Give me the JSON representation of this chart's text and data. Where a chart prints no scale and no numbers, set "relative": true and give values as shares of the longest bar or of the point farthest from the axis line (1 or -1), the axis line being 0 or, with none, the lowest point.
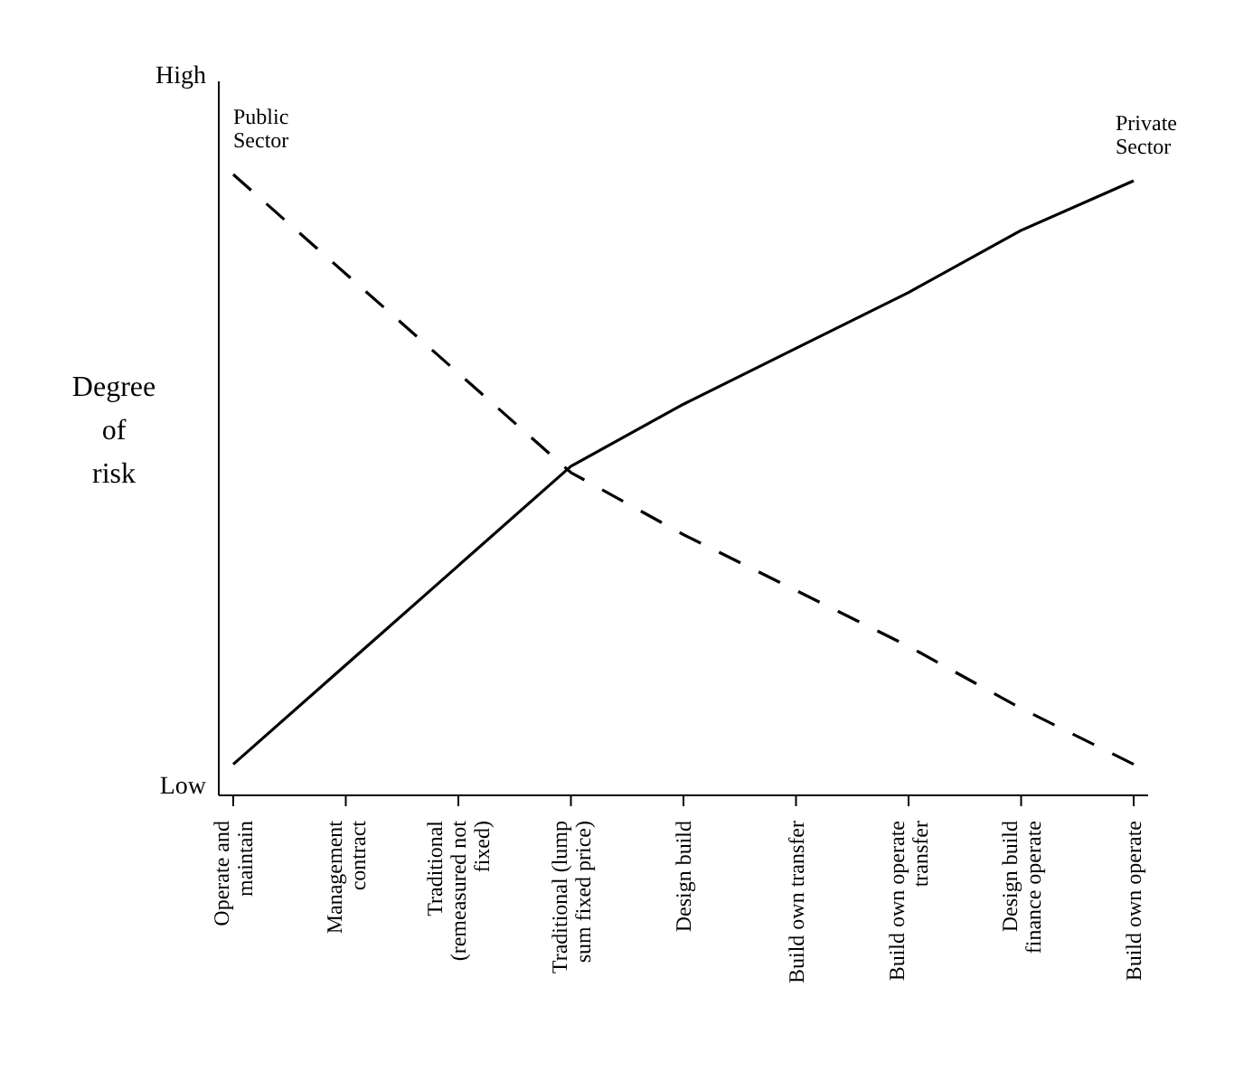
{
  "chart_data": {
    "type": "line",
    "ylabel": "Degree of risk",
    "relative": true,
    "grid": false,
    "marker": "none",
    "annotations": [
      "High",
      "Low"
    ],
    "categories": [
      "Operate and maintain",
      "Management contract",
      "Traditional (remeasured not fixed)",
      "Traditional (lump sum fixed price)",
      "Design build",
      "Build own transfer",
      "Build own operate transfer",
      "Design build finance operate",
      "Build own operate"
    ],
    "series": [
      {
        "name": "Public Sector",
        "color": "#000000",
        "line_style": "dashed",
        "values": [
          1,
          0.84,
          0.68,
          0.52,
          0.42,
          0.33,
          0.24,
          0.14,
          0.05
        ]
      },
      {
        "name": "Private Sector",
        "color": "#000000",
        "line_style": "solid",
        "values": [
          0.05,
          0.21,
          0.37,
          0.53,
          0.63,
          0.72,
          0.81,
          0.91,
          0.99
        ]
      }
    ]
  }
}
